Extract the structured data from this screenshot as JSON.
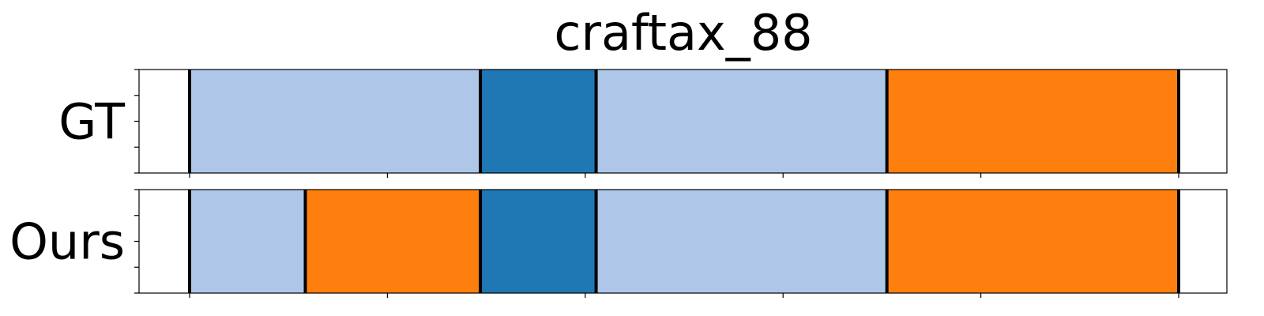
{
  "chart_data": {
    "type": "timeline",
    "title": "craftax_88",
    "x_range": [
      0,
      100
    ],
    "colors": {
      "light_blue": "#aec7e8",
      "blue": "#1f77b4",
      "orange": "#ff7f0e",
      "boundary": "#000000"
    },
    "rows": [
      {
        "label": "GT",
        "segments": [
          {
            "start": 5,
            "end": 34.4,
            "color": "#aec7e8"
          },
          {
            "start": 34.4,
            "end": 46.1,
            "color": "#1f77b4"
          },
          {
            "start": 46.1,
            "end": 75.5,
            "color": "#aec7e8"
          },
          {
            "start": 75.5,
            "end": 105,
            "color": "#ff7f0e"
          }
        ]
      },
      {
        "label": "Ours",
        "segments": [
          {
            "start": 5,
            "end": 16.7,
            "color": "#aec7e8"
          },
          {
            "start": 16.7,
            "end": 34.4,
            "color": "#ff7f0e"
          },
          {
            "start": 34.4,
            "end": 46.1,
            "color": "#1f77b4"
          },
          {
            "start": 46.1,
            "end": 75.5,
            "color": "#aec7e8"
          },
          {
            "start": 75.5,
            "end": 105,
            "color": "#ff7f0e"
          }
        ]
      }
    ],
    "x_ticks": [
      5,
      25,
      45,
      65,
      85,
      105
    ],
    "grid": false
  }
}
